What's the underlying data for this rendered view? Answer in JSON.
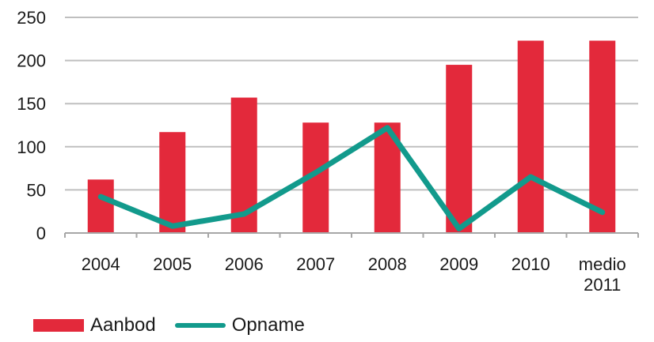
{
  "chart_data": {
    "type": "bar",
    "categories": [
      [
        "2004"
      ],
      [
        "2005"
      ],
      [
        "2006"
      ],
      [
        "2007"
      ],
      [
        "2008"
      ],
      [
        "2009"
      ],
      [
        "2010"
      ],
      [
        "medio",
        "2011"
      ]
    ],
    "series": [
      {
        "name": "Aanbod",
        "type": "bar",
        "color": "#e3293b",
        "values": [
          62,
          117,
          157,
          128,
          128,
          195,
          223,
          223
        ]
      },
      {
        "name": "Opname",
        "type": "line",
        "color": "#129a8c",
        "values": [
          42,
          8,
          22,
          70,
          122,
          5,
          65,
          24
        ]
      }
    ],
    "ylim": [
      0,
      250
    ],
    "yticks": [
      0,
      50,
      100,
      150,
      200,
      250
    ],
    "grid": true,
    "legend": "bottom-left"
  }
}
